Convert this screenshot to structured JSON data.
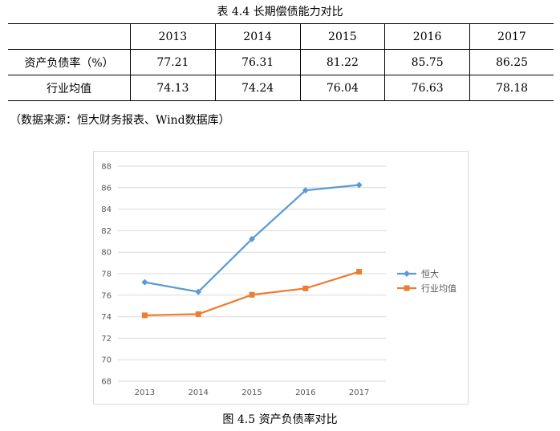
{
  "table": {
    "title": "表 4.4 长期偿债能力对比",
    "header": [
      "",
      "2013",
      "2014",
      "2015",
      "2016",
      "2017"
    ],
    "rows": [
      {
        "label": "资产负债率（%）",
        "values": [
          "77.21",
          "76.31",
          "81.22",
          "85.75",
          "86.25"
        ]
      },
      {
        "label": "行业均值",
        "values": [
          "74.13",
          "74.24",
          "76.04",
          "76.63",
          "78.18"
        ]
      }
    ]
  },
  "source_note": "（数据来源：恒大财务报表、Wind数据库）",
  "figure_title": "图 4.5 资产负债率对比",
  "chart_data": {
    "type": "line",
    "categories": [
      "2013",
      "2014",
      "2015",
      "2016",
      "2017"
    ],
    "series": [
      {
        "name": "恒大",
        "values": [
          77.21,
          76.31,
          81.22,
          85.75,
          86.25
        ],
        "color": "#5b9bd5",
        "marker": "diamond"
      },
      {
        "name": "行业均值",
        "values": [
          74.13,
          74.24,
          76.04,
          76.63,
          78.18
        ],
        "color": "#ed7d31",
        "marker": "square"
      }
    ],
    "ylim": [
      68,
      88
    ],
    "yticks": [
      "68",
      "70",
      "72",
      "74",
      "76",
      "78",
      "80",
      "82",
      "84",
      "86",
      "88"
    ],
    "grid": true,
    "legend_position": "right"
  }
}
